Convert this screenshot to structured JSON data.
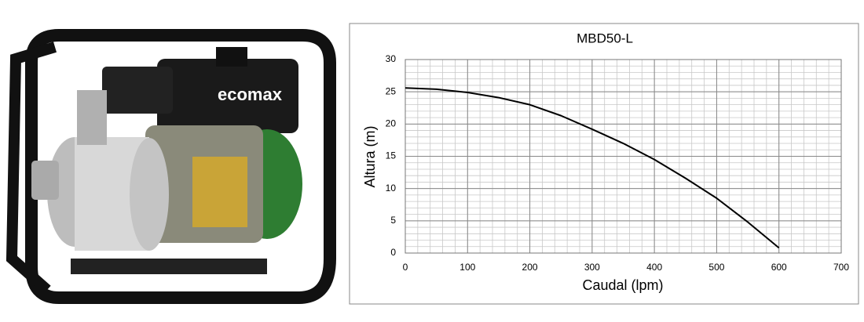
{
  "product_image": {
    "brand": "ecomax"
  },
  "chart_data": {
    "type": "line",
    "title": "MBD50-L",
    "x_label": "Caudal (lpm)",
    "y_label": "Altura (m)",
    "x": [
      0,
      50,
      100,
      150,
      200,
      250,
      300,
      350,
      400,
      450,
      500,
      550,
      600
    ],
    "series": [
      {
        "color": "#000000",
        "values": [
          25.6,
          25.4,
          24.9,
          24.1,
          23.0,
          21.3,
          19.2,
          17.0,
          14.5,
          11.6,
          8.5,
          4.8,
          0.8
        ]
      }
    ],
    "xlim": [
      0,
      700
    ],
    "xticks": [
      0,
      100,
      200,
      300,
      400,
      500,
      600,
      700
    ],
    "ylim": [
      0,
      30
    ],
    "yticks": [
      0,
      5,
      10,
      15,
      20,
      25,
      30
    ],
    "grid": true,
    "minor_grid_step": [
      20,
      1
    ]
  }
}
